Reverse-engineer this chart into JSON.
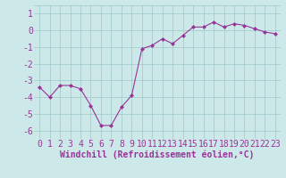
{
  "x": [
    0,
    1,
    2,
    3,
    4,
    5,
    6,
    7,
    8,
    9,
    10,
    11,
    12,
    13,
    14,
    15,
    16,
    17,
    18,
    19,
    20,
    21,
    22,
    23
  ],
  "y": [
    -3.4,
    -4.0,
    -3.3,
    -3.3,
    -3.5,
    -4.5,
    -5.7,
    -5.7,
    -4.6,
    -3.9,
    -1.1,
    -0.9,
    -0.5,
    -0.8,
    -0.3,
    0.2,
    0.2,
    0.5,
    0.2,
    0.4,
    0.3,
    0.1,
    -0.1,
    -0.2
  ],
  "line_color": "#993399",
  "marker": "D",
  "marker_size": 2,
  "bg_color": "#cce8e8",
  "grid_color": "#9ec8c8",
  "xlabel": "Windchill (Refroidissement éolien,°C)",
  "xlabel_color": "#993399",
  "xlabel_fontsize": 7,
  "tick_fontsize": 7,
  "tick_color": "#993399",
  "xlim": [
    -0.5,
    23.5
  ],
  "ylim": [
    -6.5,
    1.5
  ],
  "yticks": [
    -6,
    -5,
    -4,
    -3,
    -2,
    -1,
    0,
    1
  ],
  "xticks": [
    0,
    1,
    2,
    3,
    4,
    5,
    6,
    7,
    8,
    9,
    10,
    11,
    12,
    13,
    14,
    15,
    16,
    17,
    18,
    19,
    20,
    21,
    22,
    23
  ]
}
